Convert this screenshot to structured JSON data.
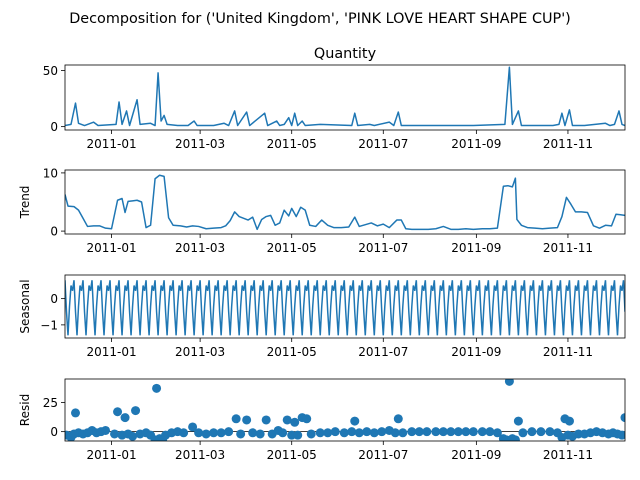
{
  "figure": {
    "suptitle": "Decomposition for ('United Kingdom', 'PINK LOVE HEART SHAPE CUP')"
  },
  "colors": {
    "line": "#1f77b4",
    "axis": "#000000",
    "zero": "#000000"
  },
  "x_axis": {
    "start": "2010-12-01",
    "end": "2011-12-09",
    "ticks": [
      {
        "date": "2011-01-01",
        "label": "2011-01"
      },
      {
        "date": "2011-03-01",
        "label": "2011-03"
      },
      {
        "date": "2011-05-01",
        "label": "2011-05"
      },
      {
        "date": "2011-07-01",
        "label": "2011-07"
      },
      {
        "date": "2011-09-01",
        "label": "2011-09"
      },
      {
        "date": "2011-11-01",
        "label": "2011-11"
      }
    ]
  },
  "chart_data": [
    {
      "type": "line",
      "id": "observed",
      "title": "Quantity",
      "ylabel": "",
      "ylim": [
        -3,
        55
      ],
      "yticks": [
        0,
        50
      ],
      "points": [
        [
          "2010-12-01",
          1
        ],
        [
          "2010-12-05",
          2
        ],
        [
          "2010-12-08",
          21
        ],
        [
          "2010-12-10",
          3
        ],
        [
          "2010-12-14",
          1
        ],
        [
          "2010-12-20",
          4
        ],
        [
          "2010-12-23",
          1
        ],
        [
          "2011-01-04",
          2
        ],
        [
          "2011-01-06",
          22
        ],
        [
          "2011-01-08",
          2
        ],
        [
          "2011-01-11",
          14
        ],
        [
          "2011-01-13",
          1
        ],
        [
          "2011-01-18",
          24
        ],
        [
          "2011-01-20",
          2
        ],
        [
          "2011-01-27",
          3
        ],
        [
          "2011-01-30",
          1
        ],
        [
          "2011-02-01",
          48
        ],
        [
          "2011-02-03",
          5
        ],
        [
          "2011-02-05",
          10
        ],
        [
          "2011-02-07",
          2
        ],
        [
          "2011-02-14",
          1
        ],
        [
          "2011-02-21",
          1
        ],
        [
          "2011-02-25",
          5
        ],
        [
          "2011-02-27",
          1
        ],
        [
          "2011-03-10",
          1
        ],
        [
          "2011-03-17",
          3
        ],
        [
          "2011-03-20",
          1
        ],
        [
          "2011-03-24",
          14
        ],
        [
          "2011-03-26",
          1
        ],
        [
          "2011-04-01",
          13
        ],
        [
          "2011-04-03",
          1
        ],
        [
          "2011-04-13",
          12
        ],
        [
          "2011-04-15",
          1
        ],
        [
          "2011-04-21",
          5
        ],
        [
          "2011-04-23",
          1
        ],
        [
          "2011-04-26",
          2
        ],
        [
          "2011-04-29",
          8
        ],
        [
          "2011-05-01",
          1
        ],
        [
          "2011-05-03",
          12
        ],
        [
          "2011-05-05",
          1
        ],
        [
          "2011-05-08",
          5
        ],
        [
          "2011-05-10",
          1
        ],
        [
          "2011-05-20",
          2
        ],
        [
          "2011-06-10",
          1
        ],
        [
          "2011-06-12",
          12
        ],
        [
          "2011-06-14",
          1
        ],
        [
          "2011-06-22",
          2
        ],
        [
          "2011-06-25",
          1
        ],
        [
          "2011-07-05",
          4
        ],
        [
          "2011-07-08",
          1
        ],
        [
          "2011-07-11",
          13
        ],
        [
          "2011-07-13",
          1
        ],
        [
          "2011-07-20",
          1
        ],
        [
          "2011-08-15",
          1
        ],
        [
          "2011-08-30",
          1
        ],
        [
          "2011-09-20",
          2
        ],
        [
          "2011-09-23",
          53
        ],
        [
          "2011-09-25",
          2
        ],
        [
          "2011-09-29",
          14
        ],
        [
          "2011-10-01",
          1
        ],
        [
          "2011-10-15",
          1
        ],
        [
          "2011-10-22",
          1
        ],
        [
          "2011-10-26",
          2
        ],
        [
          "2011-10-28",
          12
        ],
        [
          "2011-10-30",
          1
        ],
        [
          "2011-11-02",
          15
        ],
        [
          "2011-11-04",
          1
        ],
        [
          "2011-11-12",
          1
        ],
        [
          "2011-11-26",
          3
        ],
        [
          "2011-11-29",
          1
        ],
        [
          "2011-12-02",
          2
        ],
        [
          "2011-12-05",
          14
        ],
        [
          "2011-12-07",
          2
        ],
        [
          "2011-12-09",
          1
        ]
      ]
    },
    {
      "type": "line",
      "id": "trend",
      "title": "",
      "ylabel": "Trend",
      "ylim": [
        -0.5,
        10.5
      ],
      "yticks": [
        0,
        10
      ],
      "points": [
        [
          "2010-12-01",
          6.3
        ],
        [
          "2010-12-03",
          4.3
        ],
        [
          "2010-12-07",
          4.2
        ],
        [
          "2010-12-10",
          3.6
        ],
        [
          "2010-12-13",
          2.2
        ],
        [
          "2010-12-16",
          0.8
        ],
        [
          "2010-12-20",
          0.9
        ],
        [
          "2010-12-24",
          0.9
        ],
        [
          "2010-12-28",
          0.5
        ],
        [
          "2011-01-01",
          0.4
        ],
        [
          "2011-01-05",
          5.3
        ],
        [
          "2011-01-08",
          5.6
        ],
        [
          "2011-01-10",
          3.2
        ],
        [
          "2011-01-12",
          5.1
        ],
        [
          "2011-01-15",
          5.2
        ],
        [
          "2011-01-18",
          5.3
        ],
        [
          "2011-01-21",
          5.0
        ],
        [
          "2011-01-24",
          0.6
        ],
        [
          "2011-01-27",
          1.0
        ],
        [
          "2011-01-30",
          9.0
        ],
        [
          "2011-02-02",
          9.6
        ],
        [
          "2011-02-05",
          9.4
        ],
        [
          "2011-02-08",
          2.3
        ],
        [
          "2011-02-11",
          1.0
        ],
        [
          "2011-02-16",
          0.9
        ],
        [
          "2011-02-20",
          0.7
        ],
        [
          "2011-02-24",
          0.9
        ],
        [
          "2011-02-28",
          0.8
        ],
        [
          "2011-03-05",
          0.4
        ],
        [
          "2011-03-10",
          0.5
        ],
        [
          "2011-03-15",
          0.6
        ],
        [
          "2011-03-18",
          0.9
        ],
        [
          "2011-03-21",
          1.8
        ],
        [
          "2011-03-24",
          3.3
        ],
        [
          "2011-03-27",
          2.5
        ],
        [
          "2011-03-30",
          2.2
        ],
        [
          "2011-04-02",
          1.9
        ],
        [
          "2011-04-05",
          2.4
        ],
        [
          "2011-04-08",
          0.3
        ],
        [
          "2011-04-11",
          2.0
        ],
        [
          "2011-04-14",
          2.5
        ],
        [
          "2011-04-17",
          2.7
        ],
        [
          "2011-04-20",
          1.0
        ],
        [
          "2011-04-23",
          1.4
        ],
        [
          "2011-04-26",
          3.6
        ],
        [
          "2011-04-29",
          2.6
        ],
        [
          "2011-05-01",
          3.9
        ],
        [
          "2011-05-04",
          2.5
        ],
        [
          "2011-05-07",
          4.1
        ],
        [
          "2011-05-10",
          3.6
        ],
        [
          "2011-05-13",
          1.0
        ],
        [
          "2011-05-17",
          0.8
        ],
        [
          "2011-05-21",
          1.9
        ],
        [
          "2011-05-25",
          1.0
        ],
        [
          "2011-05-29",
          0.6
        ],
        [
          "2011-06-03",
          0.6
        ],
        [
          "2011-06-08",
          0.7
        ],
        [
          "2011-06-12",
          2.4
        ],
        [
          "2011-06-15",
          0.8
        ],
        [
          "2011-06-19",
          1.1
        ],
        [
          "2011-06-23",
          1.4
        ],
        [
          "2011-06-27",
          0.9
        ],
        [
          "2011-07-01",
          1.2
        ],
        [
          "2011-07-05",
          0.6
        ],
        [
          "2011-07-10",
          1.9
        ],
        [
          "2011-07-13",
          1.9
        ],
        [
          "2011-07-16",
          0.4
        ],
        [
          "2011-07-20",
          0.3
        ],
        [
          "2011-07-25",
          0.3
        ],
        [
          "2011-07-31",
          0.3
        ],
        [
          "2011-08-05",
          0.4
        ],
        [
          "2011-08-10",
          0.8
        ],
        [
          "2011-08-15",
          0.3
        ],
        [
          "2011-08-20",
          0.3
        ],
        [
          "2011-08-25",
          0.4
        ],
        [
          "2011-08-30",
          0.3
        ],
        [
          "2011-09-05",
          0.4
        ],
        [
          "2011-09-10",
          0.4
        ],
        [
          "2011-09-15",
          0.5
        ],
        [
          "2011-09-19",
          7.7
        ],
        [
          "2011-09-22",
          7.8
        ],
        [
          "2011-09-25",
          7.6
        ],
        [
          "2011-09-27",
          9.1
        ],
        [
          "2011-09-28",
          2.0
        ],
        [
          "2011-10-01",
          1.0
        ],
        [
          "2011-10-05",
          0.6
        ],
        [
          "2011-10-10",
          0.5
        ],
        [
          "2011-10-15",
          0.4
        ],
        [
          "2011-10-20",
          0.5
        ],
        [
          "2011-10-25",
          0.6
        ],
        [
          "2011-10-28",
          2.5
        ],
        [
          "2011-10-31",
          5.8
        ],
        [
          "2011-11-03",
          4.6
        ],
        [
          "2011-11-06",
          3.3
        ],
        [
          "2011-11-10",
          3.3
        ],
        [
          "2011-11-14",
          3.2
        ],
        [
          "2011-11-18",
          0.9
        ],
        [
          "2011-11-22",
          0.5
        ],
        [
          "2011-11-26",
          1.0
        ],
        [
          "2011-11-30",
          0.9
        ],
        [
          "2011-12-03",
          2.9
        ],
        [
          "2011-12-06",
          2.8
        ],
        [
          "2011-12-09",
          2.7
        ]
      ]
    },
    {
      "type": "line",
      "id": "seasonal",
      "title": "",
      "ylabel": "Seasonal",
      "ylim": [
        -1.5,
        0.9
      ],
      "yticks": [
        -1,
        0
      ],
      "period_days": 6,
      "cycle": [
        0.7,
        -0.5,
        -1.4,
        -0.3,
        0.5,
        0.3
      ]
    },
    {
      "type": "scatter",
      "id": "resid",
      "title": "",
      "ylabel": "Resid",
      "ylim": [
        -8,
        45
      ],
      "yticks": [
        0,
        25
      ],
      "zero_line": true,
      "points": [
        [
          "2010-12-02",
          -3
        ],
        [
          "2010-12-05",
          -5
        ],
        [
          "2010-12-07",
          -2
        ],
        [
          "2010-12-08",
          16
        ],
        [
          "2010-12-10",
          -1
        ],
        [
          "2010-12-13",
          -2
        ],
        [
          "2010-12-16",
          -1
        ],
        [
          "2010-12-19",
          1
        ],
        [
          "2010-12-22",
          -1
        ],
        [
          "2010-12-25",
          0
        ],
        [
          "2010-12-28",
          1
        ],
        [
          "2011-01-03",
          -2
        ],
        [
          "2011-01-05",
          17
        ],
        [
          "2011-01-08",
          -3
        ],
        [
          "2011-01-10",
          12
        ],
        [
          "2011-01-12",
          -2
        ],
        [
          "2011-01-15",
          -4
        ],
        [
          "2011-01-17",
          18
        ],
        [
          "2011-01-20",
          -2
        ],
        [
          "2011-01-24",
          -1
        ],
        [
          "2011-01-27",
          -3
        ],
        [
          "2011-01-30",
          -7
        ],
        [
          "2011-01-31",
          37
        ],
        [
          "2011-02-02",
          -6
        ],
        [
          "2011-02-04",
          -7
        ],
        [
          "2011-02-06",
          -3
        ],
        [
          "2011-02-10",
          -1
        ],
        [
          "2011-02-14",
          0
        ],
        [
          "2011-02-18",
          -1
        ],
        [
          "2011-02-24",
          4
        ],
        [
          "2011-02-28",
          -1
        ],
        [
          "2011-03-05",
          -2
        ],
        [
          "2011-03-10",
          -1
        ],
        [
          "2011-03-15",
          -1
        ],
        [
          "2011-03-20",
          0
        ],
        [
          "2011-03-25",
          11
        ],
        [
          "2011-03-28",
          -2
        ],
        [
          "2011-04-01",
          10
        ],
        [
          "2011-04-05",
          -1
        ],
        [
          "2011-04-10",
          -2
        ],
        [
          "2011-04-14",
          10
        ],
        [
          "2011-04-18",
          -2
        ],
        [
          "2011-04-22",
          1
        ],
        [
          "2011-04-25",
          -1
        ],
        [
          "2011-04-28",
          10
        ],
        [
          "2011-05-01",
          -3
        ],
        [
          "2011-05-03",
          8
        ],
        [
          "2011-05-05",
          -3
        ],
        [
          "2011-05-08",
          12
        ],
        [
          "2011-05-11",
          11
        ],
        [
          "2011-05-14",
          -2
        ],
        [
          "2011-05-20",
          -1
        ],
        [
          "2011-05-25",
          -1
        ],
        [
          "2011-05-30",
          0
        ],
        [
          "2011-06-05",
          -1
        ],
        [
          "2011-06-10",
          0
        ],
        [
          "2011-06-12",
          9
        ],
        [
          "2011-06-15",
          -1
        ],
        [
          "2011-06-20",
          0
        ],
        [
          "2011-06-25",
          -1
        ],
        [
          "2011-06-30",
          0
        ],
        [
          "2011-07-05",
          1
        ],
        [
          "2011-07-09",
          -1
        ],
        [
          "2011-07-11",
          11
        ],
        [
          "2011-07-14",
          -1
        ],
        [
          "2011-07-20",
          0
        ],
        [
          "2011-07-25",
          0
        ],
        [
          "2011-07-30",
          0
        ],
        [
          "2011-08-05",
          0
        ],
        [
          "2011-08-10",
          0
        ],
        [
          "2011-08-15",
          0
        ],
        [
          "2011-08-20",
          0
        ],
        [
          "2011-08-25",
          0
        ],
        [
          "2011-08-30",
          0
        ],
        [
          "2011-09-05",
          0
        ],
        [
          "2011-09-10",
          0
        ],
        [
          "2011-09-15",
          -1
        ],
        [
          "2011-09-19",
          -6
        ],
        [
          "2011-09-21",
          -7
        ],
        [
          "2011-09-23",
          43
        ],
        [
          "2011-09-25",
          -6
        ],
        [
          "2011-09-27",
          -7
        ],
        [
          "2011-09-29",
          9
        ],
        [
          "2011-10-02",
          -1
        ],
        [
          "2011-10-08",
          0
        ],
        [
          "2011-10-14",
          0
        ],
        [
          "2011-10-20",
          0
        ],
        [
          "2011-10-25",
          -1
        ],
        [
          "2011-10-28",
          -5
        ],
        [
          "2011-10-30",
          11
        ],
        [
          "2011-11-01",
          -3
        ],
        [
          "2011-11-02",
          9
        ],
        [
          "2011-11-04",
          -4
        ],
        [
          "2011-11-08",
          -2
        ],
        [
          "2011-11-12",
          -2
        ],
        [
          "2011-11-16",
          -1
        ],
        [
          "2011-11-20",
          0
        ],
        [
          "2011-11-24",
          -1
        ],
        [
          "2011-11-28",
          -2
        ],
        [
          "2011-12-01",
          -1
        ],
        [
          "2011-12-04",
          -2
        ],
        [
          "2011-12-07",
          -3
        ],
        [
          "2011-12-09",
          12
        ]
      ]
    }
  ]
}
